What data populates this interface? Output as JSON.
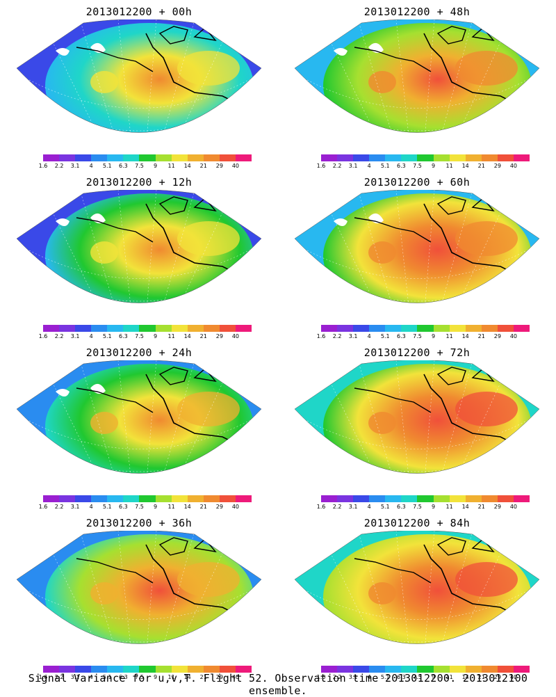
{
  "panels": [
    {
      "title": "2013012200 + 00h",
      "intensity": 0.25
    },
    {
      "title": "2013012200 + 48h",
      "intensity": 0.65
    },
    {
      "title": "2013012200 + 12h",
      "intensity": 0.35
    },
    {
      "title": "2013012200 + 60h",
      "intensity": 0.75
    },
    {
      "title": "2013012200 + 24h",
      "intensity": 0.45
    },
    {
      "title": "2013012200 + 72h",
      "intensity": 0.82
    },
    {
      "title": "2013012200 + 36h",
      "intensity": 0.55
    },
    {
      "title": "2013012200 + 84h",
      "intensity": 0.88
    }
  ],
  "colorbar": {
    "labels": [
      "1.6",
      "2.2",
      "3.1",
      "4",
      "5.1",
      "6.3",
      "7.5",
      "9",
      "11",
      "14",
      "21",
      "29",
      "40"
    ],
    "colors": [
      "#9a1fd1",
      "#7a34e0",
      "#3a49e8",
      "#2a8cf0",
      "#28b8f0",
      "#1fd6c8",
      "#20c830",
      "#a6e030",
      "#f2e33a",
      "#f0b030",
      "#f08a30",
      "#f0503a",
      "#ee1a7a"
    ]
  },
  "caption": "Signal Variance for u,v,T. Flight 52. Observation time 2013012200. 2013012100 ensemble."
}
